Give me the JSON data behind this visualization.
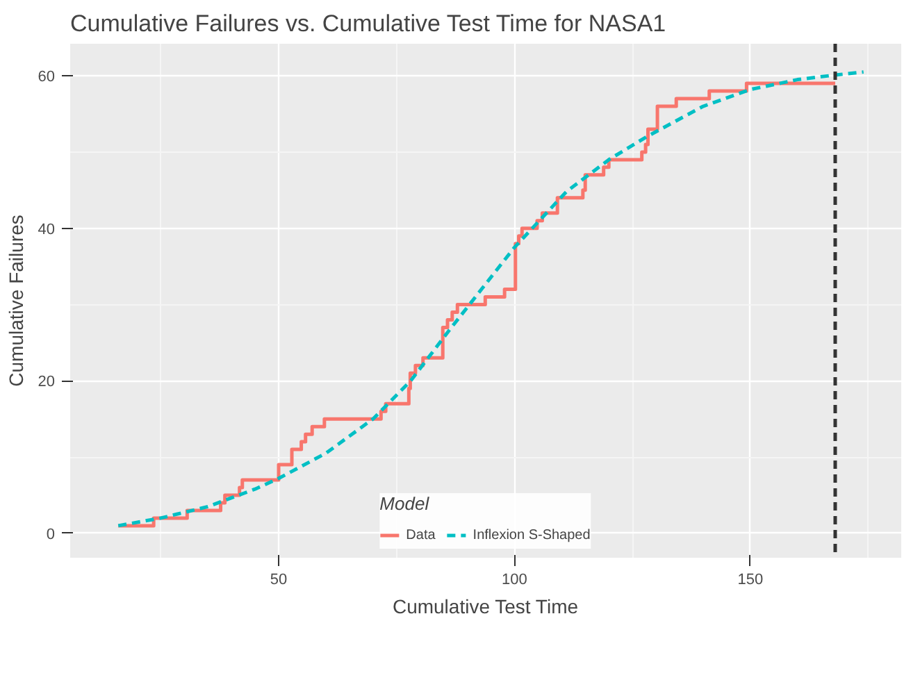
{
  "chart_data": {
    "type": "line",
    "title": "Cumulative Failures vs. Cumulative Test Time for NASA1",
    "xlabel": "Cumulative Test Time",
    "ylabel": "Cumulative Failures",
    "legend_title": "Model",
    "legend": "bottom",
    "grid": true,
    "xlim": [
      5.8,
      182
    ],
    "ylim": [
      -3.2,
      64.2
    ],
    "xticks": [
      50,
      100,
      150
    ],
    "yticks": [
      0,
      20,
      40,
      60
    ],
    "series": [
      {
        "name": "Data",
        "type": "step",
        "color": "#f8766d",
        "line_style": "solid",
        "x": [
          16,
          23.5,
          30.6,
          37.7,
          38.6,
          41.7,
          42.3,
          50,
          52.8,
          54.8,
          55.7,
          57.1,
          59.7,
          71.7,
          72.7,
          77.6,
          77.9,
          79.0,
          80.6,
          84.8,
          85.8,
          86.8,
          87.9,
          93.8,
          97.9,
          100.2,
          100.9,
          101.6,
          104.8,
          105.9,
          109.1,
          114.5,
          115,
          118.9,
          120,
          127,
          127.8,
          128.3,
          130.3,
          134.3,
          141.3,
          149.2,
          168
        ],
        "values": [
          1,
          2,
          3,
          4,
          5,
          6,
          7,
          9,
          11,
          12,
          13,
          14,
          15,
          16,
          17,
          19,
          21,
          22,
          23,
          27,
          28,
          29,
          30,
          31,
          32,
          38,
          39,
          40,
          41,
          42,
          44,
          45,
          47,
          48,
          49,
          50,
          51,
          53,
          56,
          57,
          58,
          59,
          59
        ]
      },
      {
        "name": "Inflexion S-Shaped",
        "color": "#00bfc4",
        "line_style": "dashed",
        "x": [
          16,
          25,
          35,
          45,
          50,
          60,
          70,
          78,
          86,
          93,
          100,
          111,
          120,
          128,
          140,
          150,
          160,
          168,
          174
        ],
        "values": [
          1,
          2,
          3.5,
          5.8,
          7.2,
          10.5,
          15,
          20,
          26.5,
          32,
          37.5,
          44.8,
          49,
          52,
          56,
          58.2,
          59.5,
          60.1,
          60.5
        ]
      }
    ],
    "ref_lines": [
      {
        "axis": "x",
        "value": 168,
        "color": "#333333",
        "line_style": "dashed"
      }
    ]
  }
}
